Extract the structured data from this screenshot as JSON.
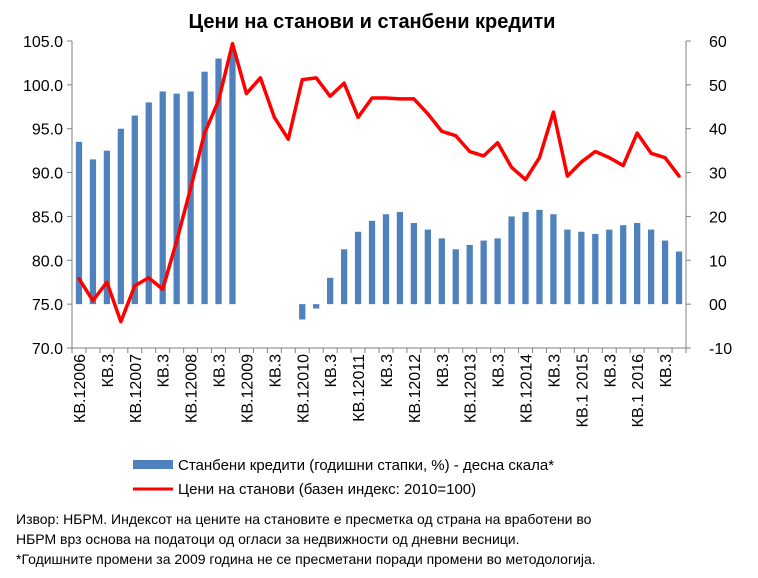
{
  "chart_data": {
    "type": "bar-line",
    "title": "Цени на станови и станбени кредити",
    "left_axis": {
      "min": 70,
      "max": 105,
      "step": 5,
      "ticks": [
        "70.0",
        "75.0",
        "80.0",
        "85.0",
        "90.0",
        "95.0",
        "100.0",
        "105.0"
      ]
    },
    "right_axis": {
      "min": -10,
      "max": 60,
      "step": 10,
      "ticks": [
        "-10",
        "00",
        "10",
        "20",
        "30",
        "40",
        "50",
        "60"
      ]
    },
    "grid": false,
    "legend_position": "bottom",
    "x_labels": [
      {
        "index": 0,
        "label": "КВ.12006"
      },
      {
        "index": 2,
        "label": "КВ.3"
      },
      {
        "index": 4,
        "label": "КВ.12007"
      },
      {
        "index": 6,
        "label": "КВ.3"
      },
      {
        "index": 8,
        "label": "КВ.12008"
      },
      {
        "index": 10,
        "label": "КВ.3"
      },
      {
        "index": 12,
        "label": "КВ.12009"
      },
      {
        "index": 14,
        "label": "КВ.3"
      },
      {
        "index": 16,
        "label": "КВ.12010"
      },
      {
        "index": 18,
        "label": "КВ.3"
      },
      {
        "index": 20,
        "label": "КВ.12011"
      },
      {
        "index": 22,
        "label": "КВ.3"
      },
      {
        "index": 24,
        "label": "КВ.12012"
      },
      {
        "index": 26,
        "label": "КВ.3"
      },
      {
        "index": 28,
        "label": "КВ.12013"
      },
      {
        "index": 30,
        "label": "КВ.3"
      },
      {
        "index": 32,
        "label": "КВ.12014"
      },
      {
        "index": 34,
        "label": "КВ.3"
      },
      {
        "index": 36,
        "label": "КВ.1 2015"
      },
      {
        "index": 38,
        "label": "КВ.3"
      },
      {
        "index": 40,
        "label": "КВ.1 2016"
      },
      {
        "index": 42,
        "label": "КВ.3"
      }
    ],
    "series": [
      {
        "name": "Станбени кредити (годишни стапки, %) - десна скала*",
        "type": "bar",
        "axis": "right",
        "color": "#4F81BD",
        "values": [
          37,
          33,
          35,
          40,
          43,
          46,
          48.5,
          48,
          48.5,
          53,
          56,
          58,
          null,
          null,
          null,
          null,
          -3.5,
          -1,
          6,
          12.5,
          16.5,
          19,
          20.5,
          21,
          18.5,
          17,
          15,
          12.5,
          13.5,
          14.5,
          15,
          20,
          21,
          21.5,
          20.5,
          17,
          16.5,
          16,
          17,
          18,
          18.5,
          17,
          14.5,
          12
        ]
      },
      {
        "name": "Цени на станови (базен индекс: 2010=100)",
        "type": "line",
        "axis": "left",
        "color": "#FF0000",
        "values": [
          77.9,
          75.4,
          77.5,
          73.0,
          77.1,
          78.0,
          76.7,
          82.2,
          88.2,
          94.5,
          98.2,
          104.7,
          99.0,
          100.8,
          96.3,
          93.8,
          100.6,
          100.8,
          98.7,
          100.2,
          96.3,
          98.5,
          98.5,
          98.4,
          98.4,
          96.7,
          94.7,
          94.2,
          92.4,
          91.9,
          93.4,
          90.6,
          89.2,
          91.7,
          96.9,
          89.6,
          91.2,
          92.4,
          91.7,
          90.8,
          94.5,
          92.2,
          91.7,
          89.6
        ]
      }
    ],
    "source_note": [
      "Извор:  НБРМ. Индексот на цените на становите е пресметка од страна на вработени во",
      "НБРМ врз основа на податоци од   огласи за недвижности од дневни весници.",
      "*Годишните промени за 2009   година не се пресметани поради промени во методологија."
    ]
  }
}
